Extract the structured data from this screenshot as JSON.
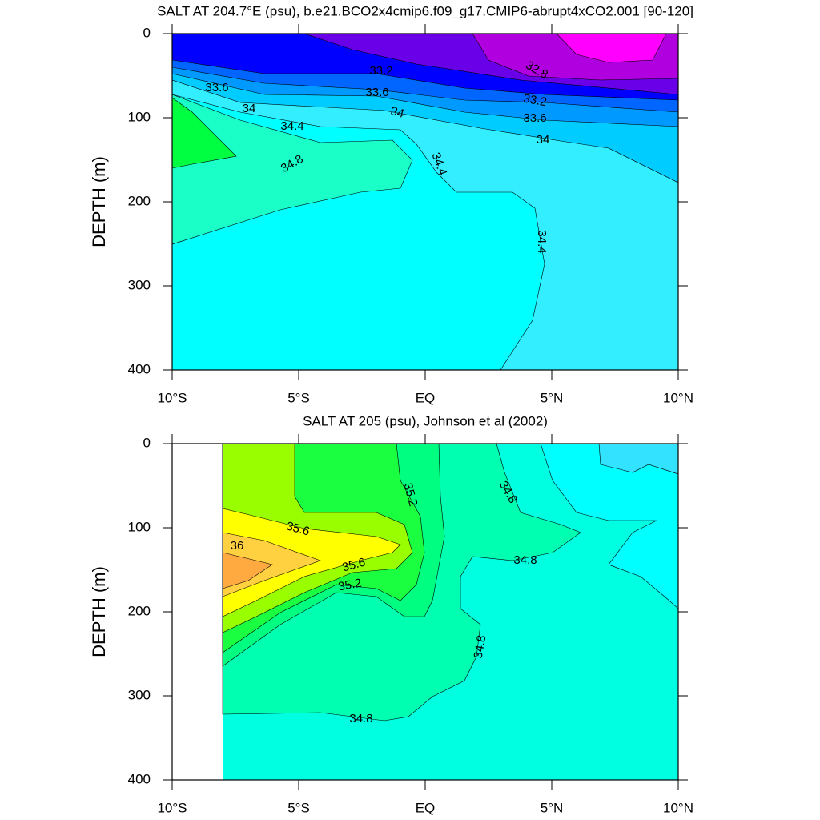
{
  "chart_data": [
    {
      "type": "contour",
      "title": "SALT AT 204.7°E (psu), b.e21.BCO2x4cmip6.f09_g17.CMIP6-abrupt4xCO2.001 [90-120]",
      "ylabel": "DEPTH (m)",
      "xlim": [
        -10,
        10
      ],
      "ylim": [
        400,
        0
      ],
      "xticks": [
        {
          "value": -10,
          "label": "10°S"
        },
        {
          "value": -5,
          "label": "5°S"
        },
        {
          "value": 0,
          "label": "EQ"
        },
        {
          "value": 5,
          "label": "5°N"
        },
        {
          "value": 10,
          "label": "10°N"
        }
      ],
      "yticks": [
        0,
        100,
        200,
        300,
        400
      ],
      "fill_colors": [
        "#00ffff",
        "#33eeff",
        "#1affc8",
        "#00ff40",
        "#00ccff",
        "#0099ff",
        "#0066ff",
        "#0000ff",
        "#6a00e8",
        "#b000e0",
        "#ff00ff"
      ],
      "contour_labels": [
        33.2,
        33.6,
        33.6,
        34,
        34,
        34.4,
        34.8,
        34.4,
        34.4,
        32.8,
        33.2,
        33.6,
        34
      ]
    },
    {
      "type": "contour",
      "title": "SALT AT 205 (psu), Johnson et al (2002)",
      "ylabel": "DEPTH (m)",
      "xlim": [
        -10,
        10
      ],
      "ylim": [
        400,
        0
      ],
      "xticks": [
        {
          "value": -10,
          "label": "10°S"
        },
        {
          "value": -5,
          "label": "5°S"
        },
        {
          "value": 0,
          "label": "EQ"
        },
        {
          "value": 5,
          "label": "5°N"
        },
        {
          "value": 10,
          "label": "10°N"
        }
      ],
      "yticks": [
        0,
        100,
        200,
        300,
        400
      ],
      "fill_colors": [
        "#00ffe0",
        "#00ffb0",
        "#00ffff",
        "#33e2ff",
        "#00ff80",
        "#1aff40",
        "#99ff00",
        "#ffff00",
        "#ffd040",
        "#ffaa40"
      ],
      "contour_labels": [
        35.2,
        34.8,
        35.6,
        36,
        35.6,
        35.2,
        34.8,
        34.8,
        34.8
      ]
    }
  ]
}
